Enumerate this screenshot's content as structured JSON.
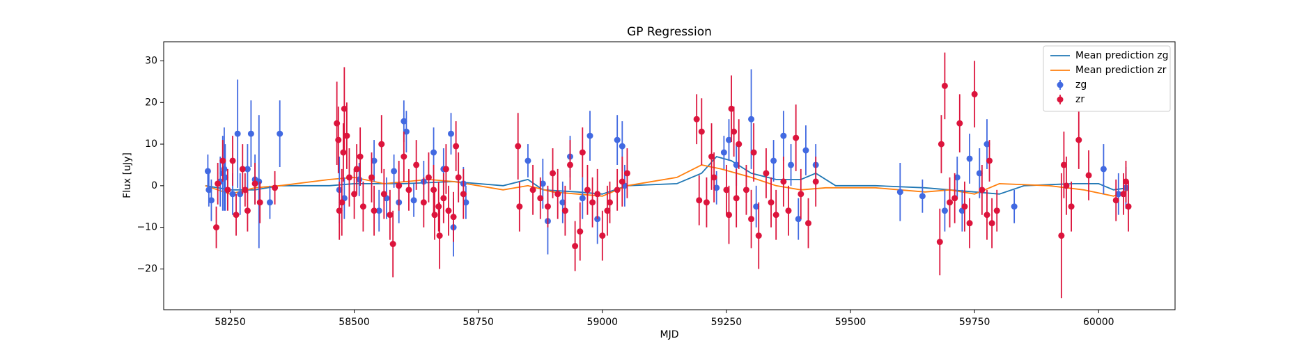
{
  "chart_data": {
    "type": "errorbar",
    "title": "GP Regression",
    "xlabel": "MJD",
    "ylabel": "Flux [uJy]",
    "xlim": [
      58116,
      60154
    ],
    "ylim": [
      -29.8,
      34.6
    ],
    "xticks": [
      58250,
      58500,
      58750,
      59000,
      59250,
      59500,
      59750,
      60000
    ],
    "yticks": [
      {
        "value": -20,
        "label": "−20"
      },
      {
        "value": -10,
        "label": "−10"
      },
      0,
      10,
      20,
      30
    ],
    "legend": "upper right",
    "series": [
      {
        "name": "Mean prediction zg",
        "type": "line",
        "color": "#1f77b4",
        "x": [
          58200,
          58250,
          58300,
          58350,
          58450,
          58500,
          58600,
          58700,
          58800,
          58850,
          58880,
          58950,
          59000,
          59050,
          59150,
          59200,
          59230,
          59260,
          59300,
          59350,
          59400,
          59430,
          59470,
          59550,
          59650,
          59700,
          59750,
          59800,
          59850,
          59950,
          60000,
          60030,
          60060
        ],
        "values": [
          0,
          -1,
          -1,
          0,
          0,
          0.5,
          0.5,
          1,
          0,
          1.5,
          -1,
          -1.5,
          -2,
          0,
          0.5,
          3,
          7,
          6,
          3,
          1.5,
          1.5,
          3,
          0,
          0,
          -0.5,
          -1,
          -1.5,
          -2,
          0,
          0.5,
          0.5,
          -1,
          -0.5
        ]
      },
      {
        "name": "Mean prediction zr",
        "type": "line",
        "color": "#ff7f0e",
        "x": [
          58200,
          58250,
          58300,
          58350,
          58450,
          58500,
          58560,
          58650,
          58700,
          58800,
          58850,
          58900,
          58950,
          59000,
          59050,
          59150,
          59200,
          59240,
          59300,
          59350,
          59400,
          59450,
          59550,
          59650,
          59700,
          59750,
          59800,
          59900,
          59970,
          60030,
          60060
        ],
        "values": [
          0,
          -2,
          -0.5,
          0,
          1.5,
          2,
          0.5,
          1.5,
          1,
          -1,
          0,
          -1.5,
          -2,
          -2.5,
          0,
          2,
          5,
          4,
          2,
          0,
          -1,
          -0.5,
          -0.5,
          -1.5,
          -1,
          -2,
          0.5,
          0,
          -1,
          -2.5,
          -1
        ]
      },
      {
        "name": "zg",
        "type": "errorbar",
        "color": "#4169e1",
        "x": [
          58205,
          58207,
          58212,
          58230,
          58235,
          58238,
          58240,
          58255,
          58265,
          58270,
          58285,
          58292,
          58300,
          58308,
          58330,
          58350,
          58470,
          58480,
          58510,
          58540,
          58550,
          58565,
          58580,
          58590,
          58600,
          58605,
          58620,
          58640,
          58660,
          58680,
          58695,
          58700,
          58720,
          58725,
          58850,
          58880,
          58890,
          58920,
          58935,
          58960,
          58975,
          58990,
          59030,
          59040,
          59045,
          59230,
          59245,
          59255,
          59270,
          59300,
          59310,
          59345,
          59365,
          59380,
          59395,
          59410,
          59430,
          59600,
          59645,
          59690,
          59715,
          59725,
          59740,
          59760,
          59775,
          59830,
          60010,
          60040,
          60055
        ],
        "values": [
          3.5,
          -1,
          -3.5,
          1,
          3,
          4,
          2,
          -2,
          12.5,
          -2,
          4,
          12.5,
          1.5,
          1,
          -4,
          12.5,
          -1,
          -3,
          1.5,
          6,
          -6,
          -3,
          3.5,
          -4,
          15.5,
          13,
          -3.5,
          1,
          8,
          4,
          12.5,
          -10,
          0.5,
          -4,
          6,
          0.5,
          -8.5,
          -4,
          7,
          -3,
          12,
          -8,
          11,
          9.5,
          0,
          -0.5,
          8,
          11,
          5,
          16,
          -5,
          6,
          12,
          5,
          -8,
          8.5,
          5,
          -1.5,
          -2.5,
          -6,
          2,
          -6,
          6.5,
          3,
          10,
          -5,
          4,
          -2,
          -0.5
        ],
        "errors": [
          4,
          4,
          5,
          6,
          9,
          10,
          8,
          5,
          13,
          5,
          6,
          8,
          6,
          16,
          4,
          8,
          8,
          5,
          4,
          5,
          5,
          5,
          4,
          5,
          5,
          5,
          4,
          5,
          6,
          5,
          5,
          7,
          4,
          4,
          4,
          6,
          8,
          5,
          5,
          5,
          6,
          6,
          6,
          6,
          5,
          4,
          4,
          5,
          5,
          12,
          5,
          5,
          6,
          5,
          5,
          6,
          5,
          7,
          4,
          5,
          5,
          5,
          6,
          6,
          6,
          4,
          6,
          5,
          5
        ]
      },
      {
        "name": "zr",
        "type": "errorbar",
        "color": "#dc143c",
        "x": [
          58222,
          58225,
          58235,
          58245,
          58255,
          58262,
          58275,
          58280,
          58285,
          58300,
          58310,
          58340,
          58465,
          58468,
          58470,
          58475,
          58478,
          58480,
          58485,
          58490,
          58500,
          58505,
          58512,
          58518,
          58535,
          58540,
          58555,
          58560,
          58572,
          58578,
          58590,
          58600,
          58610,
          58625,
          58640,
          58650,
          58660,
          58662,
          58670,
          58672,
          58680,
          58685,
          58690,
          58700,
          58705,
          58710,
          58720,
          58830,
          58833,
          58860,
          58875,
          58890,
          58900,
          58910,
          58925,
          58935,
          58945,
          58955,
          58960,
          58970,
          58980,
          58990,
          59000,
          59010,
          59015,
          59030,
          59040,
          59050,
          59190,
          59195,
          59200,
          59210,
          59220,
          59225,
          59250,
          59255,
          59260,
          59265,
          59270,
          59275,
          59290,
          59300,
          59305,
          59315,
          59330,
          59340,
          59350,
          59365,
          59375,
          59390,
          59400,
          59415,
          59430,
          59680,
          59683,
          59690,
          59700,
          59710,
          59720,
          59730,
          59740,
          59750,
          59765,
          59775,
          59780,
          59785,
          59795,
          59925,
          59930,
          59935,
          59945,
          59960,
          59980,
          60035,
          60050,
          60055,
          60060
        ],
        "values": [
          -10,
          0.5,
          6,
          -1,
          6,
          -7,
          4,
          -1,
          -6,
          0.5,
          -4,
          -0.5,
          15,
          11,
          -6,
          -4,
          8,
          18.5,
          12,
          2,
          -2,
          4,
          7,
          -5,
          2,
          -6,
          10,
          -2,
          -7,
          -14,
          0,
          7,
          -1,
          5,
          -4,
          2,
          -1,
          -7,
          -5,
          -12,
          -3,
          4,
          -6,
          -7.5,
          9.5,
          2,
          -2,
          9.5,
          -5,
          -1,
          -3,
          -5,
          3,
          -2,
          -6,
          5,
          -14.5,
          -11,
          8,
          -1,
          -4,
          -2,
          -12,
          -6,
          -4,
          -1,
          1,
          3,
          16,
          -3.5,
          13,
          -4,
          7,
          2,
          -1,
          -7,
          18.5,
          13,
          -3,
          10,
          -1,
          -8,
          8,
          -12,
          3,
          -4,
          -7,
          1,
          -6,
          11.5,
          -2,
          -9,
          1,
          -13.5,
          10,
          24,
          -4,
          -3,
          15,
          -5,
          -9,
          22,
          -1,
          -7,
          6,
          -9,
          -6,
          -12,
          5,
          0,
          -5,
          11,
          2.5,
          -3.5,
          -2,
          1,
          -5
        ],
        "errors": [
          5,
          5,
          5,
          5,
          6,
          5,
          6,
          4,
          5,
          5,
          5,
          4,
          10,
          8,
          7,
          8,
          7,
          10,
          8,
          7,
          6,
          6,
          7,
          6,
          6,
          6,
          7,
          6,
          6,
          8,
          6,
          6,
          5,
          6,
          6,
          6,
          6,
          6,
          6,
          8,
          6,
          6,
          6,
          6,
          6,
          6,
          6,
          8,
          6,
          6,
          5,
          5,
          6,
          6,
          6,
          6,
          6,
          7,
          6,
          6,
          6,
          6,
          6,
          6,
          5,
          5,
          6,
          6,
          6,
          6,
          8,
          6,
          8,
          6,
          6,
          7,
          8,
          6,
          7,
          6,
          6,
          7,
          7,
          8,
          6,
          6,
          6,
          6,
          6,
          8,
          6,
          6,
          6,
          8,
          7,
          8,
          6,
          6,
          7,
          6,
          6,
          8,
          6,
          6,
          5,
          6,
          5,
          15,
          8,
          7,
          6,
          7,
          6,
          5,
          5,
          5,
          6
        ]
      }
    ]
  }
}
